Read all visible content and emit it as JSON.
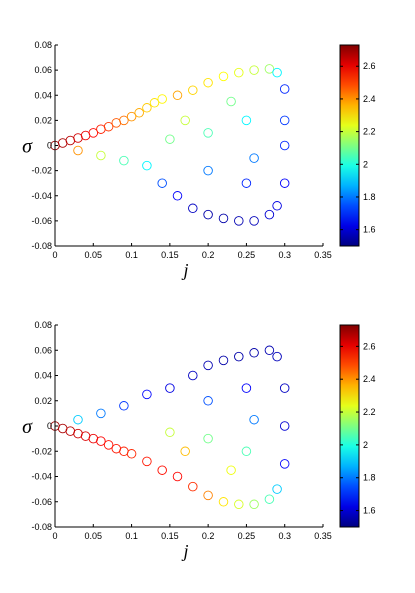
{
  "chart_data": [
    {
      "type": "scatter",
      "title": "",
      "xlabel": "j",
      "ylabel": "σ",
      "xlim": [
        0,
        0.35
      ],
      "ylim": [
        -0.08,
        0.08
      ],
      "xticks": [
        "0",
        "0.05",
        "0.1",
        "0.15",
        "0.2",
        "0.25",
        "0.3",
        "0.35"
      ],
      "yticks": [
        "0.08",
        "0.06",
        "0.04",
        "0.02",
        "0",
        "-0.02",
        "-0.04",
        "-0.06",
        "-0.08"
      ],
      "grid": false,
      "marker": "open-circle",
      "colorbar": {
        "ticks": [
          "2.6",
          "2.4",
          "2.2",
          "2",
          "1.8",
          "1.6"
        ],
        "range": [
          1.5,
          2.73
        ],
        "colormap": "jet"
      },
      "color_trend": "low values (blue) in lower region and near j=0.3, high values (red) along upper-left branch",
      "points": [
        [
          0.0,
          0.0,
          2.7
        ],
        [
          0.01,
          0.002,
          2.68
        ],
        [
          0.02,
          0.004,
          2.66
        ],
        [
          0.03,
          0.006,
          2.63
        ],
        [
          0.04,
          0.008,
          2.6
        ],
        [
          0.05,
          0.01,
          2.57
        ],
        [
          0.06,
          0.013,
          2.54
        ],
        [
          0.07,
          0.015,
          2.51
        ],
        [
          0.08,
          0.018,
          2.47
        ],
        [
          0.09,
          0.02,
          2.44
        ],
        [
          0.1,
          0.023,
          2.4
        ],
        [
          0.11,
          0.026,
          2.37
        ],
        [
          0.12,
          0.03,
          2.33
        ],
        [
          0.13,
          0.034,
          2.3
        ],
        [
          0.14,
          0.037,
          2.28
        ],
        [
          0.16,
          0.04,
          2.38
        ],
        [
          0.18,
          0.044,
          2.32
        ],
        [
          0.2,
          0.05,
          2.3
        ],
        [
          0.22,
          0.055,
          2.27
        ],
        [
          0.24,
          0.058,
          2.24
        ],
        [
          0.26,
          0.06,
          2.2
        ],
        [
          0.28,
          0.061,
          2.15
        ],
        [
          0.29,
          0.058,
          1.95
        ],
        [
          0.3,
          0.045,
          1.7
        ],
        [
          0.03,
          -0.004,
          2.4
        ],
        [
          0.06,
          -0.008,
          2.2
        ],
        [
          0.09,
          -0.012,
          2.05
        ],
        [
          0.12,
          -0.016,
          1.95
        ],
        [
          0.14,
          -0.03,
          1.75
        ],
        [
          0.16,
          -0.04,
          1.65
        ],
        [
          0.18,
          -0.05,
          1.58
        ],
        [
          0.2,
          -0.055,
          1.55
        ],
        [
          0.22,
          -0.058,
          1.55
        ],
        [
          0.24,
          -0.06,
          1.56
        ],
        [
          0.26,
          -0.06,
          1.57
        ],
        [
          0.28,
          -0.055,
          1.6
        ],
        [
          0.29,
          -0.048,
          1.62
        ],
        [
          0.3,
          -0.03,
          1.65
        ],
        [
          0.3,
          0.0,
          1.7
        ],
        [
          0.3,
          0.02,
          1.72
        ],
        [
          0.15,
          0.005,
          2.1
        ],
        [
          0.2,
          0.01,
          2.05
        ],
        [
          0.25,
          0.02,
          1.95
        ],
        [
          0.2,
          -0.02,
          1.8
        ],
        [
          0.25,
          -0.03,
          1.7
        ],
        [
          0.17,
          0.02,
          2.2
        ],
        [
          0.23,
          0.035,
          2.1
        ],
        [
          0.26,
          -0.01,
          1.8
        ]
      ]
    },
    {
      "type": "scatter",
      "title": "",
      "xlabel": "j",
      "ylabel": "σ",
      "xlim": [
        0,
        0.35
      ],
      "ylim": [
        -0.08,
        0.08
      ],
      "xticks": [
        "0",
        "0.05",
        "0.1",
        "0.15",
        "0.2",
        "0.25",
        "0.3",
        "0.35"
      ],
      "yticks": [
        "0.08",
        "0.06",
        "0.04",
        "0.02",
        "0",
        "-0.02",
        "-0.04",
        "-0.06",
        "-0.08"
      ],
      "grid": false,
      "marker": "open-circle",
      "colorbar": {
        "ticks": [
          "2.6",
          "2.4",
          "2.2",
          "2",
          "1.8",
          "1.6"
        ],
        "range": [
          1.5,
          2.73
        ],
        "colormap": "jet"
      },
      "color_trend": "high values (red) in lower-left region, low values (blue) along upper branch and near j=0.3",
      "points": [
        [
          0.0,
          0.0,
          2.7
        ],
        [
          0.01,
          -0.002,
          2.68
        ],
        [
          0.02,
          -0.004,
          2.66
        ],
        [
          0.03,
          -0.006,
          2.64
        ],
        [
          0.04,
          -0.008,
          2.62
        ],
        [
          0.05,
          -0.01,
          2.6
        ],
        [
          0.06,
          -0.012,
          2.58
        ],
        [
          0.07,
          -0.015,
          2.56
        ],
        [
          0.08,
          -0.018,
          2.55
        ],
        [
          0.09,
          -0.02,
          2.54
        ],
        [
          0.1,
          -0.022,
          2.53
        ],
        [
          0.12,
          -0.028,
          2.55
        ],
        [
          0.14,
          -0.035,
          2.56
        ],
        [
          0.16,
          -0.04,
          2.57
        ],
        [
          0.18,
          -0.048,
          2.52
        ],
        [
          0.2,
          -0.055,
          2.42
        ],
        [
          0.22,
          -0.06,
          2.3
        ],
        [
          0.24,
          -0.062,
          2.22
        ],
        [
          0.26,
          -0.062,
          2.15
        ],
        [
          0.28,
          -0.058,
          2.05
        ],
        [
          0.29,
          -0.05,
          1.9
        ],
        [
          0.3,
          -0.03,
          1.65
        ],
        [
          0.3,
          0.0,
          1.6
        ],
        [
          0.3,
          0.03,
          1.58
        ],
        [
          0.03,
          0.005,
          1.9
        ],
        [
          0.06,
          0.01,
          1.8
        ],
        [
          0.09,
          0.016,
          1.72
        ],
        [
          0.12,
          0.025,
          1.66
        ],
        [
          0.15,
          0.03,
          1.62
        ],
        [
          0.18,
          0.04,
          1.58
        ],
        [
          0.2,
          0.048,
          1.56
        ],
        [
          0.22,
          0.052,
          1.55
        ],
        [
          0.24,
          0.055,
          1.55
        ],
        [
          0.26,
          0.058,
          1.55
        ],
        [
          0.28,
          0.06,
          1.56
        ],
        [
          0.29,
          0.055,
          1.57
        ],
        [
          0.15,
          -0.005,
          2.2
        ],
        [
          0.2,
          -0.01,
          2.1
        ],
        [
          0.25,
          -0.02,
          2.05
        ],
        [
          0.2,
          0.02,
          1.75
        ],
        [
          0.25,
          0.03,
          1.65
        ],
        [
          0.17,
          -0.02,
          2.35
        ],
        [
          0.23,
          -0.035,
          2.25
        ],
        [
          0.26,
          0.005,
          1.8
        ]
      ]
    }
  ]
}
